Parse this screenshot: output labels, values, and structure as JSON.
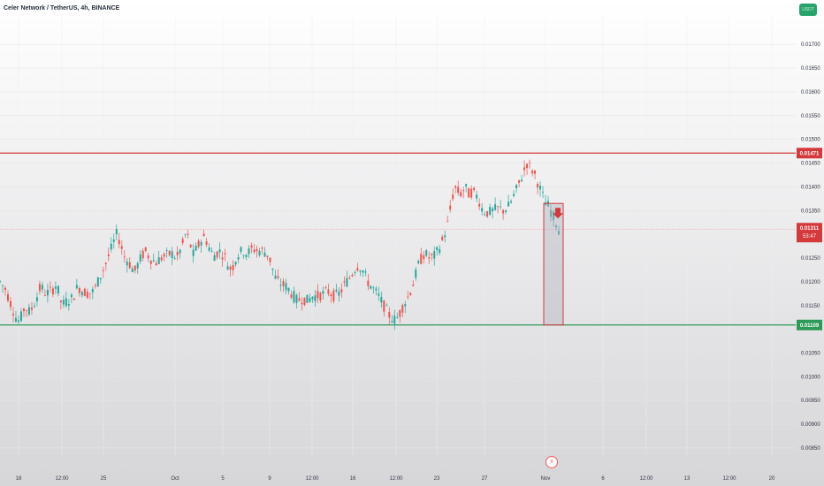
{
  "symbol_title": "Celer Network / TetherUS, 4h, BINANCE",
  "unit_badge": "USDT",
  "news_icon": "lightning-icon",
  "colors": {
    "up": "#26a69a",
    "down": "#ef5350",
    "resistance": "#d4393b",
    "support": "#2e9a57",
    "price_line": "#f07f7f",
    "background_top": "#ffffff",
    "background_bottom": "#d6d6d9",
    "axis_text": "#2f3441"
  },
  "chart_data": {
    "type": "candlestick",
    "title": "Celer Network / TetherUS, 4h, BINANCE",
    "ylim": [
      0.00835,
      0.0176
    ],
    "y_ticks": [
      "0.01700",
      "0.01650",
      "0.01600",
      "0.01550",
      "0.01500",
      "0.01450",
      "0.01400",
      "0.01350",
      "0.01250",
      "0.01200",
      "0.01150",
      "0.01050",
      "0.01000",
      "0.00950",
      "0.00900",
      "0.00850"
    ],
    "x_ticks": [
      "18",
      "12:00",
      "25",
      "Oct",
      "5",
      "9",
      "12:00",
      "16",
      "12:00",
      "23",
      "27",
      "Nov",
      "6",
      "12:00",
      "13",
      "12:00",
      "20"
    ],
    "levels": {
      "resistance": {
        "value": 0.01471,
        "label": "0.01471"
      },
      "support": {
        "value": 0.01109,
        "label": "0.01109"
      },
      "current_price": {
        "value": 0.01311,
        "label": "0.01311",
        "countdown": "53:47"
      }
    },
    "target_box": {
      "top": 0.01365,
      "bottom": 0.01109,
      "direction": "down"
    },
    "path_points": [
      [
        0,
        0.012
      ],
      [
        6,
        0.01185
      ],
      [
        12,
        0.01155
      ],
      [
        18,
        0.01125
      ],
      [
        22,
        0.01115
      ],
      [
        28,
        0.01148
      ],
      [
        34,
        0.01135
      ],
      [
        40,
        0.0116
      ],
      [
        46,
        0.0119
      ],
      [
        52,
        0.01175
      ],
      [
        58,
        0.0118
      ],
      [
        64,
        0.01195
      ],
      [
        70,
        0.0115
      ],
      [
        76,
        0.0116
      ],
      [
        82,
        0.01165
      ],
      [
        88,
        0.0119
      ],
      [
        94,
        0.0118
      ],
      [
        100,
        0.01175
      ],
      [
        106,
        0.0118
      ],
      [
        112,
        0.01205
      ],
      [
        118,
        0.0123
      ],
      [
        124,
        0.0126
      ],
      [
        128,
        0.0128
      ],
      [
        132,
        0.013
      ],
      [
        136,
        0.01285
      ],
      [
        140,
        0.01255
      ],
      [
        146,
        0.0124
      ],
      [
        152,
        0.0122
      ],
      [
        158,
        0.01245
      ],
      [
        164,
        0.01265
      ],
      [
        170,
        0.0125
      ],
      [
        176,
        0.0124
      ],
      [
        182,
        0.0125
      ],
      [
        188,
        0.01255
      ],
      [
        194,
        0.0126
      ],
      [
        200,
        0.0125
      ],
      [
        206,
        0.01275
      ],
      [
        210,
        0.013
      ],
      [
        214,
        0.0129
      ],
      [
        218,
        0.01255
      ],
      [
        224,
        0.01275
      ],
      [
        230,
        0.01295
      ],
      [
        234,
        0.01285
      ],
      [
        238,
        0.01265
      ],
      [
        242,
        0.01255
      ],
      [
        248,
        0.01265
      ],
      [
        254,
        0.01255
      ],
      [
        258,
        0.01235
      ],
      [
        262,
        0.01225
      ],
      [
        268,
        0.01255
      ],
      [
        274,
        0.01265
      ],
      [
        280,
        0.0126
      ],
      [
        286,
        0.0127
      ],
      [
        292,
        0.01265
      ],
      [
        298,
        0.01265
      ],
      [
        304,
        0.01255
      ],
      [
        308,
        0.0123
      ],
      [
        312,
        0.01205
      ],
      [
        318,
        0.01195
      ],
      [
        324,
        0.0119
      ],
      [
        330,
        0.01175
      ],
      [
        336,
        0.0116
      ],
      [
        342,
        0.01165
      ],
      [
        348,
        0.0116
      ],
      [
        354,
        0.0117
      ],
      [
        360,
        0.0117
      ],
      [
        366,
        0.01175
      ],
      [
        372,
        0.0118
      ],
      [
        378,
        0.0117
      ],
      [
        384,
        0.01175
      ],
      [
        390,
        0.01195
      ],
      [
        396,
        0.0121
      ],
      [
        402,
        0.0123
      ],
      [
        406,
        0.01235
      ],
      [
        410,
        0.01225
      ],
      [
        416,
        0.012
      ],
      [
        422,
        0.01185
      ],
      [
        428,
        0.0117
      ],
      [
        434,
        0.0115
      ],
      [
        440,
        0.0113
      ],
      [
        446,
        0.0112
      ],
      [
        450,
        0.01125
      ],
      [
        456,
        0.0115
      ],
      [
        462,
        0.0117
      ],
      [
        468,
        0.012
      ],
      [
        474,
        0.0124
      ],
      [
        480,
        0.0126
      ],
      [
        486,
        0.0125
      ],
      [
        492,
        0.01255
      ],
      [
        498,
        0.01275
      ],
      [
        502,
        0.01295
      ],
      [
        506,
        0.0132
      ],
      [
        510,
        0.0136
      ],
      [
        514,
        0.014
      ],
      [
        518,
        0.0139
      ],
      [
        522,
        0.01385
      ],
      [
        526,
        0.014
      ],
      [
        530,
        0.01385
      ],
      [
        534,
        0.0139
      ],
      [
        538,
        0.01385
      ],
      [
        542,
        0.0137
      ],
      [
        546,
        0.0135
      ],
      [
        552,
        0.01345
      ],
      [
        558,
        0.0135
      ],
      [
        564,
        0.01355
      ],
      [
        570,
        0.0135
      ],
      [
        576,
        0.0136
      ],
      [
        582,
        0.01385
      ],
      [
        588,
        0.0141
      ],
      [
        592,
        0.0143
      ],
      [
        596,
        0.0145
      ],
      [
        600,
        0.0144
      ],
      [
        604,
        0.0143
      ],
      [
        608,
        0.0141
      ],
      [
        612,
        0.0139
      ],
      [
        616,
        0.0137
      ],
      [
        620,
        0.0136
      ],
      [
        624,
        0.01345
      ],
      [
        628,
        0.0133
      ],
      [
        632,
        0.01311
      ]
    ]
  }
}
